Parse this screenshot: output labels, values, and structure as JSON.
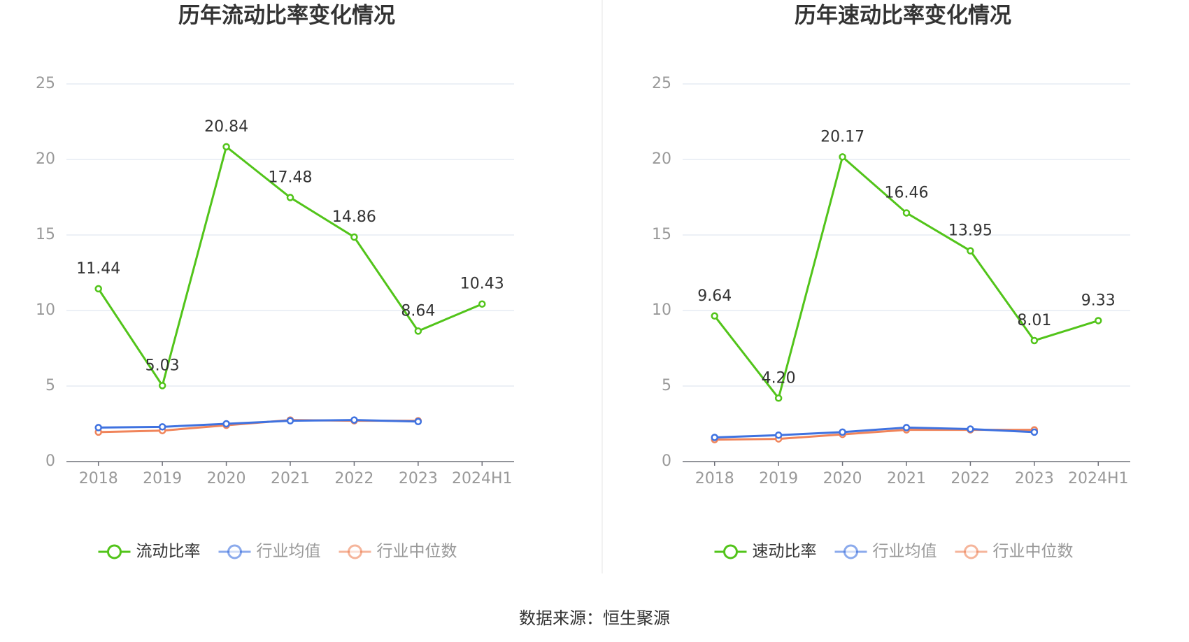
{
  "chart_data": [
    {
      "type": "line",
      "title": "历年流动比率变化情况",
      "categories": [
        "2018",
        "2019",
        "2020",
        "2021",
        "2022",
        "2023",
        "2024H1"
      ],
      "series": [
        {
          "name": "流动比率",
          "color": "#52c41a",
          "values": [
            11.44,
            5.03,
            20.84,
            17.48,
            14.86,
            8.64,
            10.43
          ],
          "value_labels": [
            "11.44",
            "5.03",
            "20.84",
            "17.48",
            "14.86",
            "8.64",
            "10.43"
          ]
        },
        {
          "name": "行业均值",
          "color": "#3f72e0",
          "values": [
            2.25,
            2.3,
            2.5,
            2.7,
            2.75,
            2.65,
            null
          ]
        },
        {
          "name": "行业中位数",
          "color": "#f0845a",
          "values": [
            1.95,
            2.05,
            2.4,
            2.75,
            2.7,
            2.7,
            null
          ]
        }
      ],
      "ylim": [
        0,
        25
      ],
      "yticks": [
        0,
        5,
        10,
        15,
        20,
        25
      ],
      "grid": true,
      "legend": "bottom"
    },
    {
      "type": "line",
      "title": "历年速动比率变化情况",
      "categories": [
        "2018",
        "2019",
        "2020",
        "2021",
        "2022",
        "2023",
        "2024H1"
      ],
      "series": [
        {
          "name": "速动比率",
          "color": "#52c41a",
          "values": [
            9.64,
            4.2,
            20.17,
            16.46,
            13.95,
            8.01,
            9.33
          ],
          "value_labels": [
            "9.64",
            "4.20",
            "20.17",
            "16.46",
            "13.95",
            "8.01",
            "9.33"
          ]
        },
        {
          "name": "行业均值",
          "color": "#3f72e0",
          "values": [
            1.6,
            1.75,
            1.95,
            2.25,
            2.15,
            1.95,
            null
          ]
        },
        {
          "name": "行业中位数",
          "color": "#f0845a",
          "values": [
            1.45,
            1.5,
            1.8,
            2.1,
            2.1,
            2.1,
            null
          ]
        }
      ],
      "ylim": [
        0,
        25
      ],
      "yticks": [
        0,
        5,
        10,
        15,
        20,
        25
      ],
      "grid": true,
      "legend": "bottom"
    }
  ],
  "source": "数据来源：恒生聚源"
}
